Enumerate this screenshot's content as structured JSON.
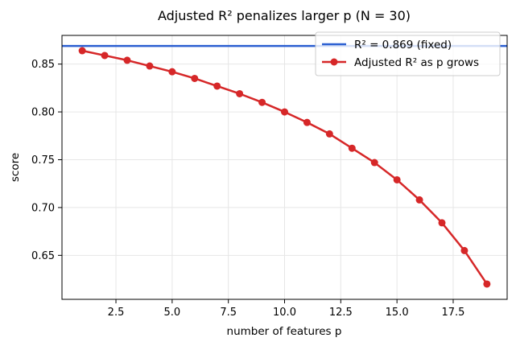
{
  "chart_data": {
    "type": "line",
    "title": "Adjusted R² penalizes larger p  (N = 30)",
    "xlabel": "number of features  p",
    "ylabel": "score",
    "xlim": [
      0.1,
      19.9
    ],
    "ylim": [
      0.604,
      0.88
    ],
    "x_ticks": [
      2.5,
      5.0,
      7.5,
      10.0,
      12.5,
      15.0,
      17.5
    ],
    "x_tick_labels": [
      "2.5",
      "5.0",
      "7.5",
      "10.0",
      "12.5",
      "15.0",
      "17.5"
    ],
    "y_ticks": [
      0.65,
      0.7,
      0.75,
      0.8,
      0.85
    ],
    "y_tick_labels": [
      "0.65",
      "0.70",
      "0.75",
      "0.80",
      "0.85"
    ],
    "grid": true,
    "legend_position": "top-right",
    "hline": {
      "name": "R² = 0.869 (fixed)",
      "y": 0.869,
      "color": "#2b5fd1"
    },
    "series": [
      {
        "name": "Adjusted R² as p grows",
        "color": "#d62728",
        "marker": "circle",
        "x": [
          1,
          2,
          3,
          4,
          5,
          6,
          7,
          8,
          9,
          10,
          11,
          12,
          13,
          14,
          15,
          16,
          17,
          18,
          19
        ],
        "y": [
          0.864,
          0.859,
          0.854,
          0.848,
          0.842,
          0.835,
          0.827,
          0.819,
          0.81,
          0.8,
          0.789,
          0.777,
          0.762,
          0.747,
          0.729,
          0.708,
          0.684,
          0.655,
          0.62
        ]
      }
    ]
  }
}
